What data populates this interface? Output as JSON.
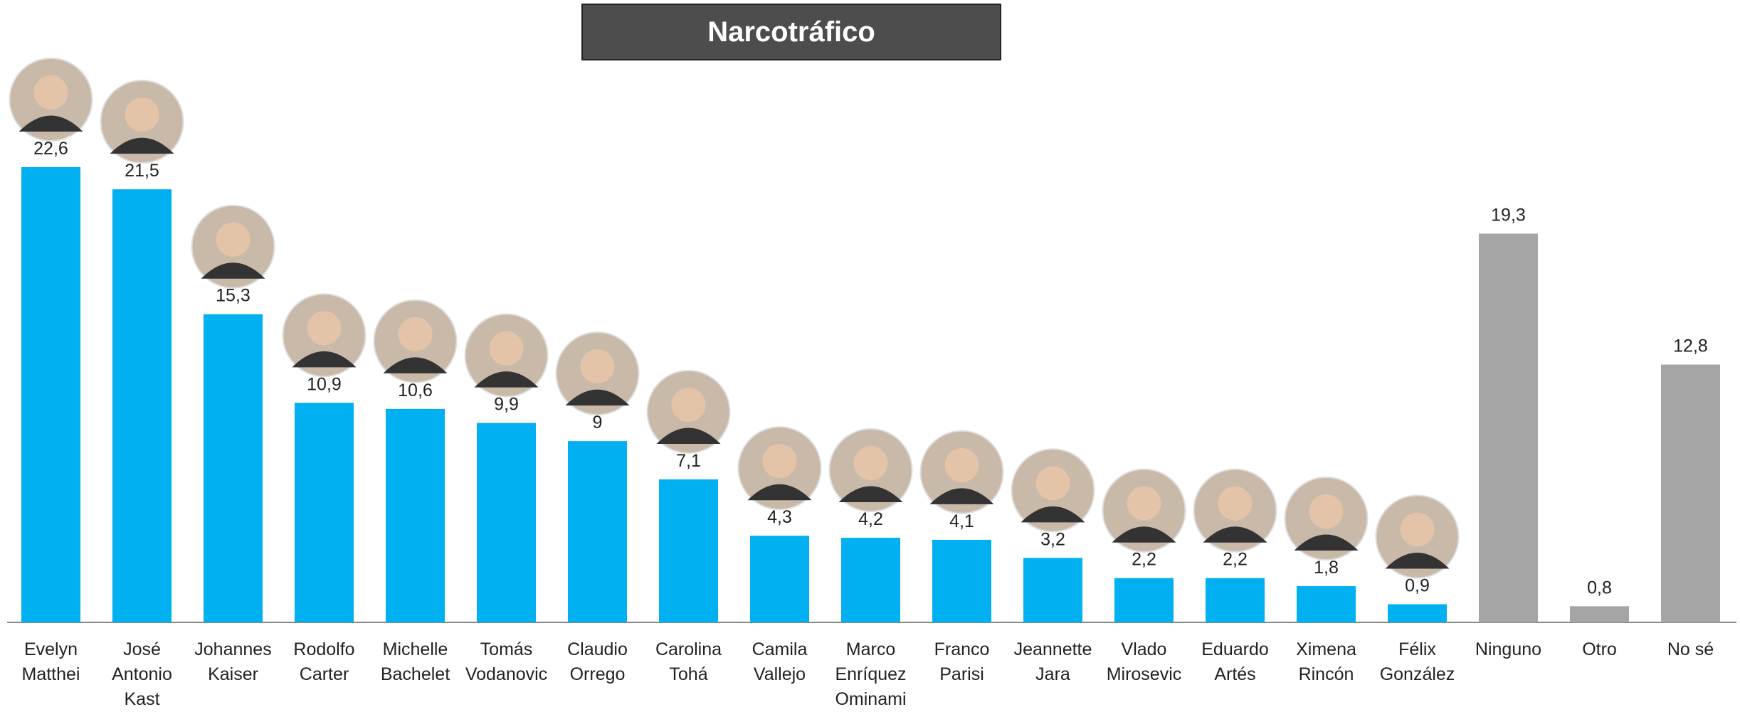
{
  "chart_data": {
    "type": "bar",
    "title": "Narcotráfico",
    "categories": [
      "Evelyn Matthei",
      "José Antonio Kast",
      "Johannes Kaiser",
      "Rodolfo Carter",
      "Michelle Bachelet",
      "Tomás Vodanovic",
      "Claudio Orrego",
      "Carolina Tohá",
      "Camila Vallejo",
      "Marco Enríquez Ominami",
      "Franco Parisi",
      "Jeannette Jara",
      "Vlado Mirosevic",
      "Eduardo Artés",
      "Ximena Rincón",
      "Félix González",
      "Ninguno",
      "Otro",
      "No sé"
    ],
    "values": [
      22.6,
      21.5,
      15.3,
      10.9,
      10.6,
      9.9,
      9,
      7.1,
      4.3,
      4.2,
      4.1,
      3.2,
      2.2,
      2.2,
      1.8,
      0.9,
      19.3,
      0.8,
      12.8
    ],
    "value_labels": [
      "22,6",
      "21,5",
      "15,3",
      "10,9",
      "10,6",
      "9,9",
      "9",
      "7,1",
      "4,3",
      "4,2",
      "4,1",
      "3,2",
      "2,2",
      "2,2",
      "1,8",
      "0,9",
      "19,3",
      "0,8",
      "12,8"
    ],
    "colors": [
      "#00b0f0",
      "#00b0f0",
      "#00b0f0",
      "#00b0f0",
      "#00b0f0",
      "#00b0f0",
      "#00b0f0",
      "#00b0f0",
      "#00b0f0",
      "#00b0f0",
      "#00b0f0",
      "#00b0f0",
      "#00b0f0",
      "#00b0f0",
      "#00b0f0",
      "#00b0f0",
      "#a5a5a5",
      "#a5a5a5",
      "#a5a5a5"
    ]
  }
}
